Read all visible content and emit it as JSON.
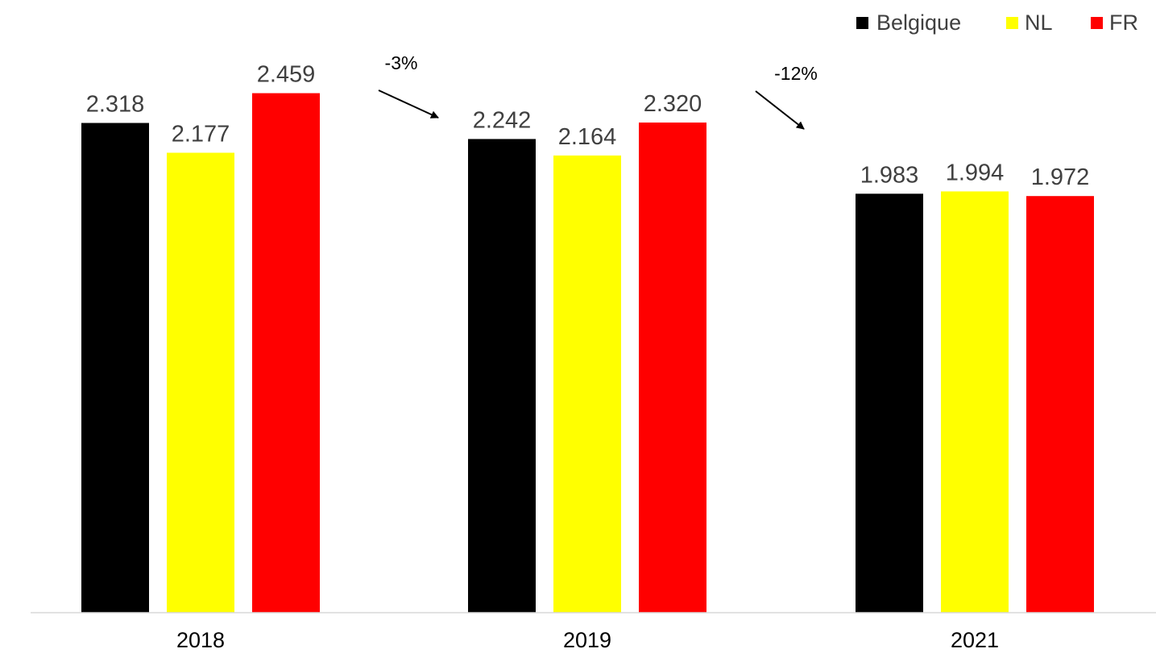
{
  "chart_data": {
    "type": "bar",
    "categories": [
      "2018",
      "2019",
      "2021"
    ],
    "series": [
      {
        "name": "Belgique",
        "color": "#000000",
        "values": [
          2.318,
          2.242,
          1.983
        ],
        "labels": [
          "2.318",
          "2.242",
          "1.983"
        ]
      },
      {
        "name": "NL",
        "color": "#ffff00",
        "values": [
          2.177,
          2.164,
          1.994
        ],
        "labels": [
          "2.177",
          "2.164",
          "1.994"
        ]
      },
      {
        "name": "FR",
        "color": "#ff0000",
        "values": [
          2.459,
          2.32,
          1.972
        ],
        "labels": [
          "2.459",
          "2.320",
          "1.972"
        ]
      }
    ],
    "ylim": [
      0,
      2.9
    ],
    "grid": false,
    "legend": "top-right",
    "annotations": [
      {
        "text": "-3%",
        "between": [
          "2018",
          "2019"
        ]
      },
      {
        "text": "-12%",
        "between": [
          "2019",
          "2021"
        ]
      }
    ]
  }
}
